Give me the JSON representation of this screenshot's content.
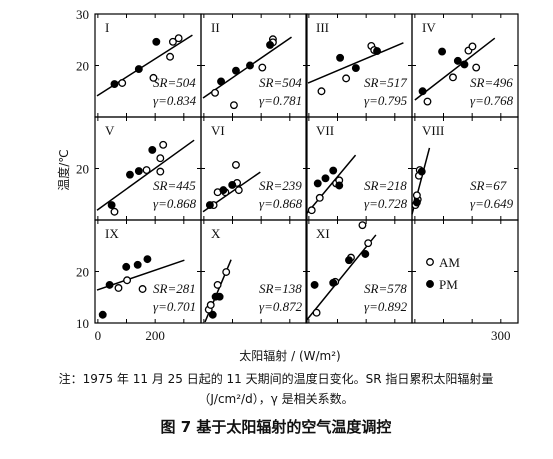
{
  "axes": {
    "xlim": [
      -10,
      360
    ],
    "ylim": [
      10,
      30
    ],
    "xticks": [
      0,
      100,
      200,
      300
    ],
    "yticks": [
      10,
      20,
      30
    ]
  },
  "y_label": "温度/℃",
  "x_label": "太阳辐射 / (W/m²)",
  "note": [
    "注：1975 年 11 月 25 日起的 11 天期间的温度日变化。SR 指日累积太阳辐射量",
    "（J/cm²/d），γ 是相关系数。"
  ],
  "caption": "图 7 基于太阳辐射的空气温度调控",
  "chart_data": [
    {
      "type": "scatter",
      "label": "I",
      "sr": "SR=504",
      "r": "γ=0.834",
      "fit": {
        "x": [
          -3,
          330
        ],
        "y": [
          14.1,
          25.9
        ]
      },
      "series": [
        {
          "name": "AM",
          "marker": "open",
          "color": "#000",
          "x": [
            85,
            194,
            252,
            262,
            282
          ],
          "values": [
            16.6,
            17.6,
            21.7,
            24.6,
            25.3
          ]
        },
        {
          "name": "PM",
          "marker": "filled",
          "color": "#000",
          "x": [
            58,
            143,
            204
          ],
          "values": [
            16.4,
            19.3,
            24.6
          ]
        }
      ]
    },
    {
      "type": "scatter",
      "label": "II",
      "sr": "SR=504",
      "r": "γ=0.781",
      "fit": {
        "x": [
          -3,
          306
        ],
        "y": [
          13.7,
          25.5
        ]
      },
      "series": [
        {
          "name": "AM",
          "marker": "open",
          "color": "#000",
          "x": [
            39,
            105,
            204,
            241,
            241
          ],
          "values": [
            14.7,
            12.3,
            19.6,
            25.1,
            24.5
          ]
        },
        {
          "name": "PM",
          "marker": "filled",
          "color": "#000",
          "x": [
            60,
            112,
            161,
            231
          ],
          "values": [
            16.9,
            19,
            20,
            24
          ]
        }
      ]
    },
    {
      "type": "scatter",
      "label": "III",
      "sr": "SR=517",
      "r": "γ=0.795",
      "fit": {
        "x": [
          -3,
          330
        ],
        "y": [
          16.6,
          24.4
        ]
      },
      "series": [
        {
          "name": "AM",
          "marker": "open",
          "color": "#000",
          "x": [
            44,
            130,
            218,
            228
          ],
          "values": [
            15,
            17.5,
            23.8,
            23
          ]
        },
        {
          "name": "PM",
          "marker": "filled",
          "color": "#000",
          "x": [
            109,
            164,
            238
          ],
          "values": [
            21.5,
            19.5,
            22.8
          ]
        }
      ]
    },
    {
      "type": "scatter",
      "label": "IV",
      "sr": "SR=496",
      "r": "γ=0.768",
      "fit": {
        "x": [
          0,
          279
        ],
        "y": [
          13.3,
          25.3
        ]
      },
      "series": [
        {
          "name": "AM",
          "marker": "open",
          "color": "#000",
          "x": [
            44,
            133,
            187,
            201,
            214
          ],
          "values": [
            13,
            17.7,
            22.9,
            23.7,
            19.6
          ]
        },
        {
          "name": "PM",
          "marker": "filled",
          "color": "#000",
          "x": [
            27,
            95,
            150,
            173
          ],
          "values": [
            15,
            22.7,
            20.9,
            20.2
          ]
        }
      ]
    },
    {
      "type": "scatter",
      "label": "V",
      "sr": "SR=445",
      "r": "γ=0.868",
      "fit": {
        "x": [
          -3,
          336
        ],
        "y": [
          11.9,
          25.5
        ]
      },
      "series": [
        {
          "name": "AM",
          "marker": "open",
          "color": "#000",
          "x": [
            58,
            170,
            218,
            228,
            218
          ],
          "values": [
            11.6,
            19.7,
            22,
            24.6,
            19.4
          ]
        },
        {
          "name": "PM",
          "marker": "filled",
          "color": "#000",
          "x": [
            48,
            112,
            143,
            190
          ],
          "values": [
            12.9,
            18.8,
            19.5,
            23.6
          ]
        }
      ]
    },
    {
      "type": "scatter",
      "label": "VI",
      "sr": "SR=239",
      "r": "γ=0.868",
      "fit": {
        "x": [
          -3,
          197
        ],
        "y": [
          11.6,
          19.3
        ]
      },
      "series": [
        {
          "name": "AM",
          "marker": "open",
          "color": "#000",
          "x": [
            34,
            48,
            75,
            116,
            122,
            112
          ],
          "values": [
            12.9,
            15.4,
            15.4,
            17.2,
            15.8,
            20.7
          ]
        },
        {
          "name": "PM",
          "marker": "filled",
          "color": "#000",
          "x": [
            21,
            68,
            99
          ],
          "values": [
            12.9,
            15.8,
            16.8
          ]
        }
      ]
    },
    {
      "type": "scatter",
      "label": "VII",
      "sr": "SR=218",
      "r": "γ=0.728",
      "fit": {
        "x": [
          -10,
          163
        ],
        "y": [
          11.1,
          22.6
        ]
      },
      "series": [
        {
          "name": "AM",
          "marker": "open",
          "color": "#000",
          "x": [
            10,
            38,
            95,
            106
          ],
          "values": [
            11.9,
            14.3,
            17.1,
            17.7
          ]
        },
        {
          "name": "PM",
          "marker": "filled",
          "color": "#000",
          "x": [
            31,
            58,
            85,
            106
          ],
          "values": [
            17.1,
            18.1,
            19.6,
            16.7
          ]
        }
      ]
    },
    {
      "type": "scatter",
      "label": "VIII",
      "sr": "SR=67",
      "r": "γ=0.649",
      "fit": {
        "x": [
          -10,
          51
        ],
        "y": [
          11.1,
          24
        ]
      },
      "series": [
        {
          "name": "AM",
          "marker": "open",
          "color": "#000",
          "x": [
            2,
            10,
            17,
            14,
            7
          ],
          "values": [
            12.9,
            14,
            19.7,
            18.6,
            14.8
          ]
        },
        {
          "name": "PM",
          "marker": "filled",
          "color": "#000",
          "x": [
            24,
            7
          ],
          "values": [
            19.4,
            13.4
          ]
        }
      ]
    },
    {
      "type": "scatter",
      "label": "IX",
      "sr": "SR=281",
      "r": "γ=0.701",
      "fit": {
        "x": [
          -3,
          302
        ],
        "y": [
          16.4,
          22.2
        ]
      },
      "series": [
        {
          "name": "AM",
          "marker": "open",
          "color": "#000",
          "x": [
            72,
            102,
            156
          ],
          "values": [
            16.8,
            18.3,
            16.6
          ]
        },
        {
          "name": "PM",
          "marker": "filled",
          "color": "#000",
          "x": [
            17,
            41,
            99,
            139,
            173
          ],
          "values": [
            11.6,
            17.4,
            20.9,
            21.3,
            22.4
          ]
        }
      ]
    },
    {
      "type": "scatter",
      "label": "X",
      "sr": "SR=138",
      "r": "γ=0.872",
      "fit": {
        "x": [
          4,
          95
        ],
        "y": [
          10.2,
          22.3
        ]
      },
      "series": [
        {
          "name": "AM",
          "marker": "open",
          "color": "#000",
          "x": [
            17,
            24,
            48,
            78
          ],
          "values": [
            12.6,
            13.5,
            17.4,
            19.9
          ]
        },
        {
          "name": "PM",
          "marker": "filled",
          "color": "#000",
          "x": [
            31,
            41,
            55
          ],
          "values": [
            11.6,
            15.1,
            15.1
          ]
        }
      ]
    },
    {
      "type": "scatter",
      "label": "XI",
      "sr": "SR=578",
      "r": "γ=0.892",
      "fit": {
        "x": [
          -7,
          234
        ],
        "y": [
          10.6,
          27.1
        ]
      },
      "series": [
        {
          "name": "AM",
          "marker": "open",
          "color": "#000",
          "x": [
            27,
            92,
            147,
            207,
            187
          ],
          "values": [
            12,
            18,
            22.7,
            25.5,
            29
          ]
        },
        {
          "name": "PM",
          "marker": "filled",
          "color": "#000",
          "x": [
            20,
            85,
            140,
            197
          ],
          "values": [
            17.4,
            17.8,
            22.2,
            23.4
          ]
        }
      ]
    }
  ]
}
